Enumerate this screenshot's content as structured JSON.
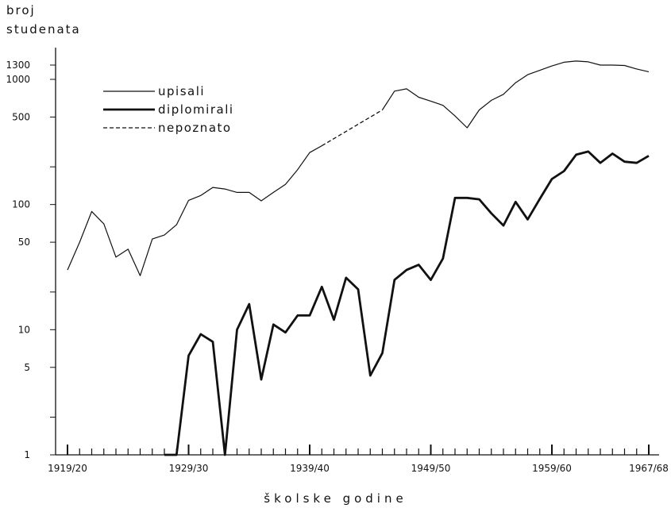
{
  "chart_data": {
    "type": "line",
    "ylabel_lines": [
      "broj",
      "studenata"
    ],
    "xlabel": "školske godine",
    "y_scale": "log",
    "ylim": [
      1,
      1500
    ],
    "y_ticks": [
      1,
      5,
      10,
      50,
      100,
      500,
      1000,
      1300
    ],
    "y_tick_labels": [
      "1",
      "5",
      "10",
      "50",
      "100",
      "500",
      "1000",
      "1300"
    ],
    "x_tick_labels": [
      "1919/20",
      "1929/30",
      "1939/40",
      "1949/50",
      "1959/60",
      "1967/68"
    ],
    "years": [
      "1919/20",
      "1920/21",
      "1921/22",
      "1922/23",
      "1923/24",
      "1924/25",
      "1925/26",
      "1926/27",
      "1927/28",
      "1928/29",
      "1929/30",
      "1930/31",
      "1931/32",
      "1932/33",
      "1933/34",
      "1934/35",
      "1935/36",
      "1936/37",
      "1937/38",
      "1938/39",
      "1939/40",
      "1940/41",
      "1941/42",
      "1942/43",
      "1943/44",
      "1944/45",
      "1945/46",
      "1946/47",
      "1947/48",
      "1948/49",
      "1949/50",
      "1950/51",
      "1951/52",
      "1952/53",
      "1953/54",
      "1954/55",
      "1955/56",
      "1956/57",
      "1957/58",
      "1958/59",
      "1959/60",
      "1960/61",
      "1961/62",
      "1962/63",
      "1963/64",
      "1964/65",
      "1965/66",
      "1966/67",
      "1967/68"
    ],
    "legend": {
      "position": "top-left",
      "entries": [
        {
          "label": "upisali",
          "style": "thin"
        },
        {
          "label": "diplomirali",
          "style": "thick"
        },
        {
          "label": "nepoznato",
          "style": "dashed"
        }
      ]
    },
    "series": [
      {
        "legend_label": "upisali",
        "style": "thin",
        "segments": [
          {
            "start": "1919/20",
            "end": "1940/41",
            "values": [
              30,
              50,
              88,
              70,
              38,
              44,
              27,
              53,
              57,
              69,
              108,
              118,
              137,
              133,
              125,
              125,
              107,
              125,
              145,
              190,
              260,
              295
            ]
          },
          {
            "start": "1945/46",
            "end": "1967/68",
            "values": [
              570,
              805,
              840,
              720,
              670,
              620,
              510,
              410,
              570,
              680,
              760,
              940,
              1090,
              1180,
              1280,
              1370,
              1400,
              1380,
              1300,
              1300,
              1290,
              1210,
              1150
            ]
          }
        ],
        "unknown_segment": {
          "label": "nepoznato",
          "start": "1940/41",
          "end": "1945/46",
          "values": [
            295,
            570
          ]
        }
      },
      {
        "legend_label": "diplomirali",
        "style": "thick",
        "segments": [
          {
            "start": "1927/28",
            "end": "1967/68",
            "values": [
              1,
              1,
              6.2,
              9.2,
              8,
              1,
              10,
              16,
              4,
              11,
              9.5,
              13,
              13,
              22,
              12,
              26,
              21,
              4.3,
              6.5,
              25,
              30,
              33,
              25,
              37,
              113,
              113,
              110,
              85,
              68,
              105,
              76,
              111,
              160,
              185,
              250,
              265,
              215,
              255,
              220,
              215,
              245
            ]
          }
        ]
      }
    ]
  }
}
